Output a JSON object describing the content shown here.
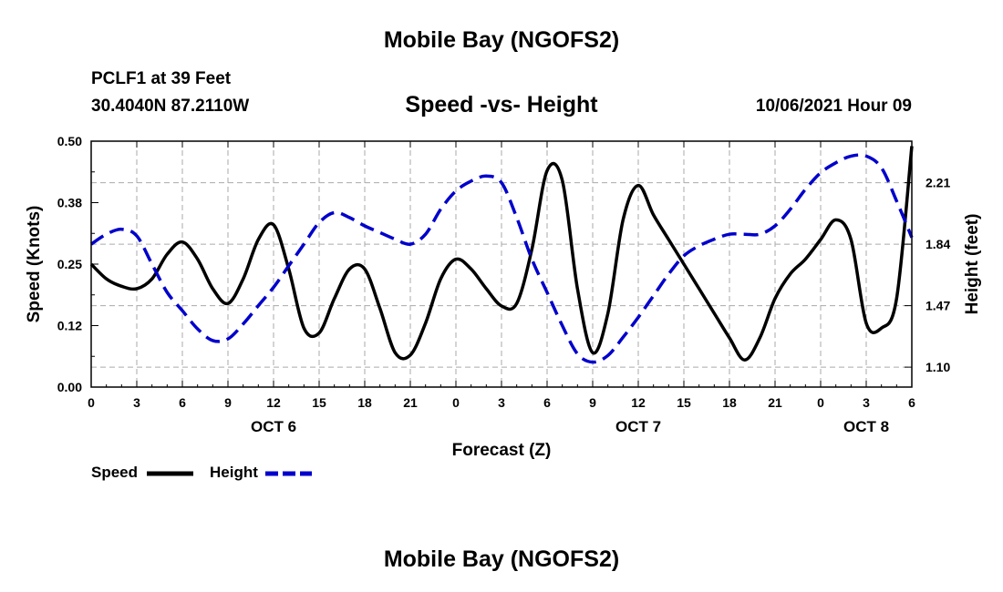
{
  "header": {
    "title": "Mobile Bay (NGOFS2)",
    "station": "PCLF1 at 39 Feet",
    "coords": "30.4040N  87.2110W",
    "subtitle": "Speed -vs- Height",
    "date": "10/06/2021 Hour 09",
    "footer_title": "Mobile Bay (NGOFS2)"
  },
  "legend": {
    "speed_label": "Speed",
    "height_label": "Height"
  },
  "colors": {
    "speed": "#000000",
    "height": "#0000cc",
    "grid": "#aaaaaa"
  },
  "chart_data": {
    "type": "line",
    "title": "Speed -vs- Height",
    "xlabel": "Forecast (Z)",
    "ylabel": "Speed (Knots)",
    "y2label": "Height (feet)",
    "xlim": [
      0,
      54
    ],
    "ylim": [
      0,
      0.5
    ],
    "y2lim": [
      0.98,
      2.46
    ],
    "grid": true,
    "x_ticks": [
      {
        "x": 0,
        "label": "0"
      },
      {
        "x": 3,
        "label": "3"
      },
      {
        "x": 6,
        "label": "6"
      },
      {
        "x": 9,
        "label": "9"
      },
      {
        "x": 12,
        "label": "12"
      },
      {
        "x": 15,
        "label": "15"
      },
      {
        "x": 18,
        "label": "18"
      },
      {
        "x": 21,
        "label": "21"
      },
      {
        "x": 24,
        "label": "0"
      },
      {
        "x": 27,
        "label": "3"
      },
      {
        "x": 30,
        "label": "6"
      },
      {
        "x": 33,
        "label": "9"
      },
      {
        "x": 36,
        "label": "12"
      },
      {
        "x": 39,
        "label": "15"
      },
      {
        "x": 42,
        "label": "18"
      },
      {
        "x": 45,
        "label": "21"
      },
      {
        "x": 48,
        "label": "0"
      },
      {
        "x": 51,
        "label": "3"
      },
      {
        "x": 54,
        "label": "6"
      }
    ],
    "day_labels": [
      {
        "x": 12,
        "label": "OCT 6"
      },
      {
        "x": 36,
        "label": "OCT 7"
      },
      {
        "x": 51,
        "label": "OCT 8"
      }
    ],
    "y_ticks": [
      {
        "y": 0.0,
        "label": "0.00"
      },
      {
        "y": 0.125,
        "label": "0.12"
      },
      {
        "y": 0.25,
        "label": "0.25"
      },
      {
        "y": 0.375,
        "label": "0.38"
      },
      {
        "y": 0.5,
        "label": "0.50"
      }
    ],
    "y2_ticks": [
      {
        "y": 1.1,
        "label": "1.10"
      },
      {
        "y": 1.47,
        "label": "1.47"
      },
      {
        "y": 1.84,
        "label": "1.84"
      },
      {
        "y": 2.21,
        "label": "2.21"
      }
    ],
    "series": [
      {
        "name": "Speed",
        "axis": "left",
        "style": "solid",
        "x": [
          0,
          1,
          2,
          3,
          4,
          5,
          6,
          7,
          8,
          9,
          10,
          11,
          12,
          13,
          14,
          15,
          16,
          17,
          18,
          19,
          20,
          21,
          22,
          23,
          24,
          25,
          26,
          27,
          28,
          29,
          30,
          31,
          32,
          33,
          34,
          35,
          36,
          37,
          38,
          39,
          40,
          41,
          42,
          43,
          44,
          45,
          46,
          47,
          48,
          49,
          50,
          51,
          52,
          53,
          54
        ],
        "values": [
          0.25,
          0.22,
          0.205,
          0.2,
          0.22,
          0.27,
          0.295,
          0.26,
          0.2,
          0.17,
          0.22,
          0.3,
          0.33,
          0.24,
          0.12,
          0.11,
          0.18,
          0.24,
          0.24,
          0.16,
          0.07,
          0.065,
          0.13,
          0.22,
          0.26,
          0.24,
          0.2,
          0.165,
          0.17,
          0.28,
          0.44,
          0.42,
          0.2,
          0.07,
          0.15,
          0.34,
          0.41,
          0.35,
          0.3,
          0.25,
          0.2,
          0.15,
          0.1,
          0.055,
          0.1,
          0.18,
          0.23,
          0.26,
          0.3,
          0.34,
          0.3,
          0.13,
          0.12,
          0.18,
          0.49
        ]
      },
      {
        "name": "Height",
        "axis": "right",
        "style": "dashed",
        "x": [
          0,
          1,
          2,
          3,
          4,
          5,
          6,
          7,
          8,
          9,
          10,
          11,
          12,
          13,
          14,
          15,
          16,
          17,
          18,
          19,
          20,
          21,
          22,
          23,
          24,
          25,
          26,
          27,
          28,
          29,
          30,
          31,
          32,
          33,
          34,
          35,
          36,
          37,
          38,
          39,
          40,
          41,
          42,
          43,
          44,
          45,
          46,
          47,
          48,
          49,
          50,
          51,
          52,
          53,
          54
        ],
        "values": [
          1.84,
          1.9,
          1.93,
          1.89,
          1.72,
          1.55,
          1.44,
          1.33,
          1.26,
          1.27,
          1.36,
          1.47,
          1.58,
          1.71,
          1.84,
          1.97,
          2.03,
          2.0,
          1.95,
          1.91,
          1.87,
          1.84,
          1.9,
          2.05,
          2.16,
          2.22,
          2.25,
          2.21,
          2.0,
          1.75,
          1.55,
          1.35,
          1.18,
          1.13,
          1.17,
          1.28,
          1.4,
          1.53,
          1.66,
          1.77,
          1.83,
          1.87,
          1.9,
          1.9,
          1.9,
          1.95,
          2.05,
          2.17,
          2.27,
          2.33,
          2.37,
          2.37,
          2.3,
          2.1,
          1.88
        ]
      }
    ]
  }
}
